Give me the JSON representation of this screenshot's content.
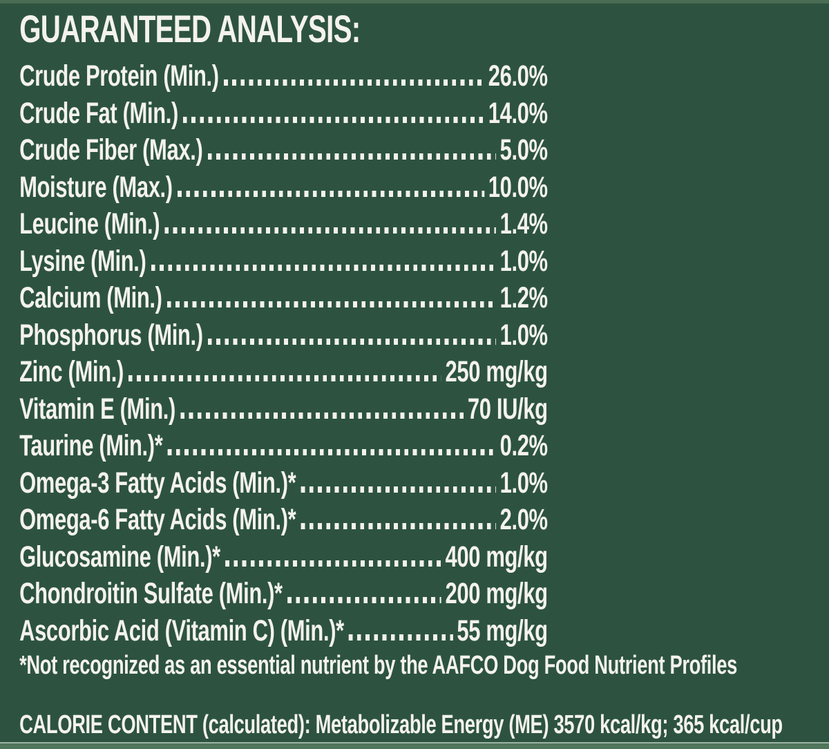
{
  "colors": {
    "background": "#2d5340",
    "text": "#f4f2ec",
    "edge_strip": "#4a6d54",
    "edge_line": "#9db3a2"
  },
  "header": {
    "title": "GUARANTEED ANALYSIS:"
  },
  "analysis": {
    "rows": [
      {
        "name": "Crude Protein (Min.)",
        "value": "26.0%"
      },
      {
        "name": "Crude Fat (Min.)",
        "value": "14.0%"
      },
      {
        "name": "Crude Fiber (Max.)",
        "value": "5.0%"
      },
      {
        "name": "Moisture (Max.)",
        "value": "10.0%"
      },
      {
        "name": "Leucine (Min.)",
        "value": "1.4%"
      },
      {
        "name": "Lysine (Min.)",
        "value": "1.0%"
      },
      {
        "name": "Calcium (Min.)",
        "value": "1.2%"
      },
      {
        "name": "Phosphorus (Min.)",
        "value": "1.0%"
      },
      {
        "name": "Zinc (Min.)",
        "value": "250 mg/kg"
      },
      {
        "name": "Vitamin E (Min.)",
        "value": "70 IU/kg"
      },
      {
        "name": "Taurine (Min.)*",
        "value": "0.2%"
      },
      {
        "name": "Omega-3 Fatty Acids (Min.)*",
        "value": "1.0%"
      },
      {
        "name": "Omega-6 Fatty Acids (Min.)*",
        "value": "2.0%"
      },
      {
        "name": "Glucosamine (Min.)*",
        "value": "400 mg/kg"
      },
      {
        "name": "Chondroitin Sulfate (Min.)*",
        "value": "200 mg/kg"
      },
      {
        "name": "Ascorbic Acid (Vitamin C) (Min.)*",
        "value": "55 mg/kg"
      }
    ],
    "footnote": "*Not recognized as an essential nutrient by the AAFCO Dog Food Nutrient Profiles"
  },
  "calorie_content": "CALORIE CONTENT (calculated): Metabolizable Energy (ME) 3570 kcal/kg; 365 kcal/cup"
}
